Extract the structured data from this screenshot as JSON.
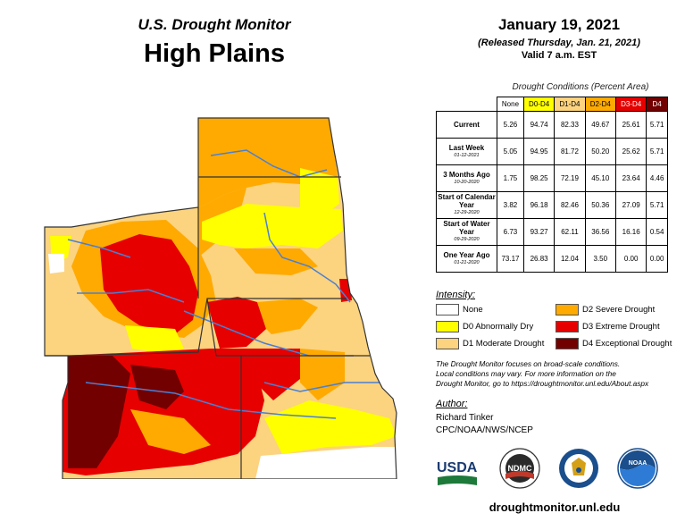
{
  "header": {
    "brand_title": "U.S. Drought Monitor",
    "region_title": "High Plains"
  },
  "date_info": {
    "map_date": "January 19, 2021",
    "release_note": "(Released Thursday, Jan. 21, 2021)",
    "valid_note": "Valid 7 a.m. EST"
  },
  "conditions_table": {
    "title": "Drought Conditions (Percent Area)",
    "columns": [
      "None",
      "D0-D4",
      "D1-D4",
      "D2-D4",
      "D3-D4",
      "D4"
    ],
    "rows": [
      {
        "label": "Current",
        "sublabel": "",
        "values": [
          "5.26",
          "94.74",
          "82.33",
          "49.67",
          "25.61",
          "5.71"
        ]
      },
      {
        "label": "Last Week",
        "sublabel": "01-12-2021",
        "values": [
          "5.05",
          "94.95",
          "81.72",
          "50.20",
          "25.62",
          "5.71"
        ]
      },
      {
        "label": "3 Months Ago",
        "sublabel": "10-20-2020",
        "values": [
          "1.75",
          "98.25",
          "72.19",
          "45.10",
          "23.64",
          "4.46"
        ]
      },
      {
        "label": "Start of Calendar Year",
        "sublabel": "12-29-2020",
        "values": [
          "3.82",
          "96.18",
          "82.46",
          "50.36",
          "27.09",
          "5.71"
        ]
      },
      {
        "label": "Start of Water Year",
        "sublabel": "09-29-2020",
        "values": [
          "6.73",
          "93.27",
          "62.11",
          "36.56",
          "16.16",
          "0.54"
        ]
      },
      {
        "label": "One Year Ago",
        "sublabel": "01-21-2020",
        "values": [
          "73.17",
          "26.83",
          "12.04",
          "3.50",
          "0.00",
          "0.00"
        ]
      }
    ]
  },
  "legend": {
    "title": "Intensity:",
    "items": [
      {
        "label": "None",
        "color": "#ffffff"
      },
      {
        "label": "D0 Abnormally Dry",
        "color": "#ffff00"
      },
      {
        "label": "D1 Moderate Drought",
        "color": "#fcd37f"
      },
      {
        "label": "D2 Severe Drought",
        "color": "#ffaa00"
      },
      {
        "label": "D3 Extreme Drought",
        "color": "#e60000"
      },
      {
        "label": "D4 Exceptional Drought",
        "color": "#730000"
      }
    ]
  },
  "disclaimer": {
    "line1": "The Drought Monitor focuses on broad-scale conditions.",
    "line2": "Local conditions may vary. For more information on the",
    "line3": "Drought Monitor, go to https://droughtmonitor.unl.edu/About.aspx"
  },
  "author": {
    "title": "Author:",
    "name": "Richard Tinker",
    "org": "CPC/NOAA/NWS/NCEP"
  },
  "logos": {
    "usda_text": "USDA",
    "ndmc_text": "NDMC",
    "noaa_text": "NOAA"
  },
  "footer": {
    "url": "droughtmonitor.unl.edu"
  },
  "map": {
    "colors": {
      "none": "#ffffff",
      "d0": "#ffff00",
      "d1": "#fcd37f",
      "d2": "#ffaa00",
      "d3": "#e60000",
      "d4": "#730000",
      "river": "#4a7fd4",
      "border": "#333333"
    }
  }
}
